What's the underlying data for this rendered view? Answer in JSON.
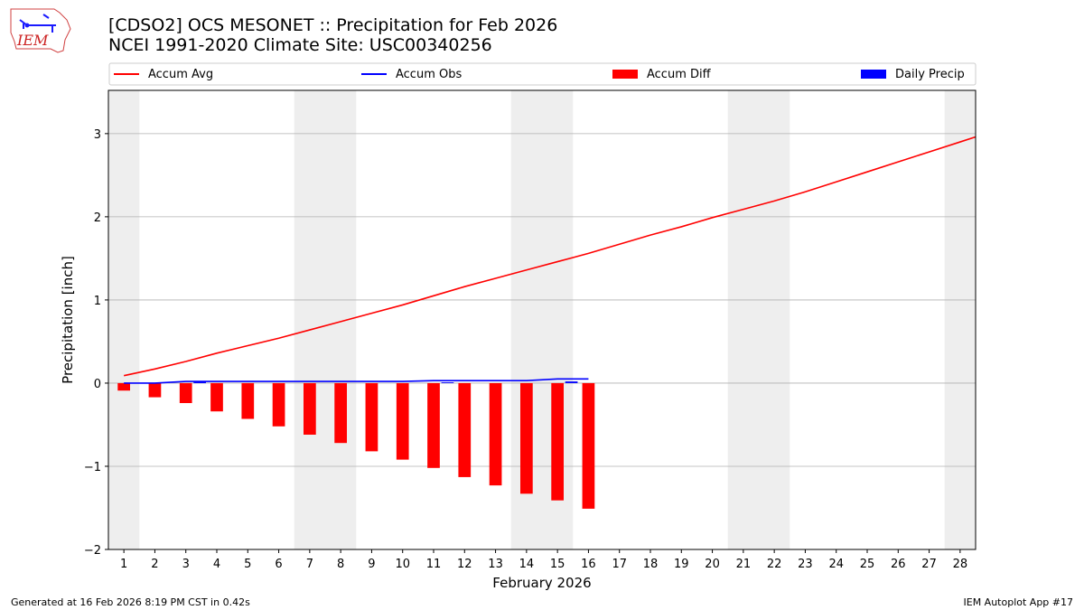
{
  "header": {
    "title_line1": "[CDSO2] OCS MESONET :: Precipitation for Feb 2026",
    "title_line2": "NCEI 1991-2020 Climate Site: USC00340256"
  },
  "logo": {
    "text": "IEM"
  },
  "footer": {
    "generated": "Generated at 16 Feb 2026 8:19 PM CST in 0.42s",
    "app": "IEM Autoplot App #17"
  },
  "colors": {
    "accum_avg": "#ff0000",
    "accum_obs": "#0000ff",
    "accum_diff": "#ff0000",
    "daily_precip": "#0000ff",
    "weekend_shade": "#eeeeee",
    "grid": "#b0b0b0"
  },
  "chart_data": {
    "type": "bar",
    "xlabel": "February 2026",
    "ylabel": "Precipitation [inch]",
    "ylim": [
      -2,
      3.52
    ],
    "xlim": [
      0.5,
      28.5
    ],
    "y_ticks": [
      3,
      2,
      1,
      0,
      -1,
      -2
    ],
    "y_tick_labels": [
      "3",
      "2",
      "1",
      "0",
      "−1",
      "−2"
    ],
    "x_ticks": [
      1,
      2,
      3,
      4,
      5,
      6,
      7,
      8,
      9,
      10,
      11,
      12,
      13,
      14,
      15,
      16,
      17,
      18,
      19,
      20,
      21,
      22,
      23,
      24,
      25,
      26,
      27,
      28
    ],
    "x_tick_labels": [
      "1",
      "2",
      "3",
      "4",
      "5",
      "6",
      "7",
      "8",
      "9",
      "10",
      "11",
      "12",
      "13",
      "14",
      "15",
      "16",
      "17",
      "18",
      "19",
      "20",
      "21",
      "22",
      "23",
      "24",
      "25",
      "26",
      "27",
      "28"
    ],
    "grid": "y",
    "legend_position": "top",
    "weekend_shading": [
      [
        0.5,
        1.5
      ],
      [
        6.5,
        8.5
      ],
      [
        13.5,
        15.5
      ],
      [
        20.5,
        22.5
      ],
      [
        27.5,
        28.5
      ]
    ],
    "series": [
      {
        "name": "Accum Avg",
        "type": "line",
        "x": [
          1,
          2,
          3,
          4,
          5,
          6,
          7,
          8,
          9,
          10,
          11,
          12,
          13,
          14,
          15,
          16,
          17,
          18,
          19,
          20,
          21,
          22,
          23,
          24,
          25,
          26,
          27,
          28,
          28.5
        ],
        "values": [
          0.09,
          0.17,
          0.26,
          0.36,
          0.45,
          0.54,
          0.64,
          0.74,
          0.84,
          0.94,
          1.05,
          1.16,
          1.26,
          1.36,
          1.46,
          1.56,
          1.67,
          1.78,
          1.88,
          1.99,
          2.09,
          2.19,
          2.3,
          2.42,
          2.54,
          2.66,
          2.78,
          2.9,
          2.96
        ]
      },
      {
        "name": "Accum Obs",
        "type": "line",
        "x": [
          1,
          2,
          3,
          4,
          5,
          6,
          7,
          8,
          9,
          10,
          11,
          12,
          13,
          14,
          15,
          16
        ],
        "values": [
          0.0,
          0.0,
          0.02,
          0.02,
          0.02,
          0.02,
          0.02,
          0.02,
          0.02,
          0.02,
          0.03,
          0.03,
          0.03,
          0.03,
          0.05,
          0.05
        ]
      },
      {
        "name": "Accum Diff",
        "type": "bar",
        "x": [
          1,
          2,
          3,
          4,
          5,
          6,
          7,
          8,
          9,
          10,
          11,
          12,
          13,
          14,
          15,
          16
        ],
        "values": [
          -0.09,
          -0.17,
          -0.24,
          -0.34,
          -0.43,
          -0.52,
          -0.62,
          -0.72,
          -0.82,
          -0.92,
          -1.02,
          -1.13,
          -1.23,
          -1.33,
          -1.41,
          -1.51
        ]
      },
      {
        "name": "Daily Precip",
        "type": "bar",
        "x": [
          1,
          2,
          3,
          4,
          5,
          6,
          7,
          8,
          9,
          10,
          11,
          12,
          13,
          14,
          15,
          16
        ],
        "values": [
          0.0,
          0.0,
          0.02,
          0.0,
          0.0,
          0.0,
          0.0,
          0.0,
          0.0,
          0.0,
          0.01,
          0.0,
          0.0,
          0.0,
          0.02,
          0.0
        ]
      }
    ]
  }
}
